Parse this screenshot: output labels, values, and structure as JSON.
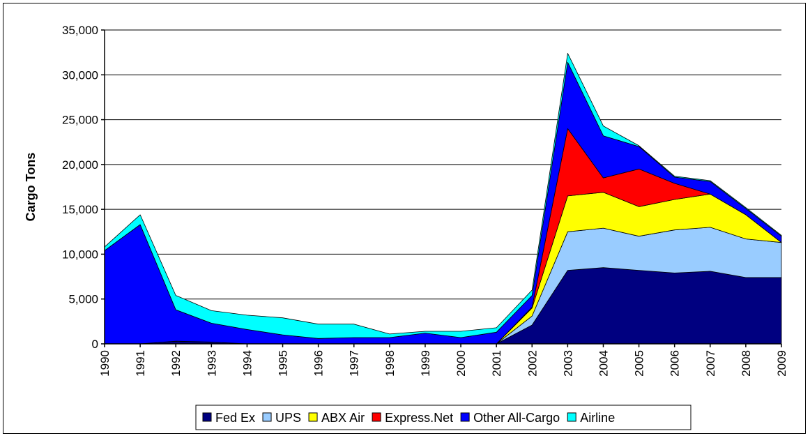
{
  "chart_data": {
    "type": "area",
    "stacked": true,
    "title": "",
    "xlabel": "",
    "ylabel": "Cargo Tons",
    "ylim": [
      0,
      35000
    ],
    "yticks": [
      0,
      5000,
      10000,
      15000,
      20000,
      25000,
      30000,
      35000
    ],
    "ytick_labels": [
      "0",
      "5,000",
      "10,000",
      "15,000",
      "20,000",
      "25,000",
      "30,000",
      "35,000"
    ],
    "grid": true,
    "legend_position": "bottom",
    "categories": [
      "1990",
      "1991",
      "1992",
      "1993",
      "1994",
      "1995",
      "1996",
      "1997",
      "1998",
      "1999",
      "2000",
      "2001",
      "2002",
      "2003",
      "2004",
      "2005",
      "2006",
      "2007",
      "2008",
      "2009"
    ],
    "series": [
      {
        "name": "Fed Ex",
        "color": "#000080",
        "values": [
          0,
          0,
          300,
          200,
          0,
          0,
          0,
          0,
          0,
          0,
          0,
          0,
          2100,
          8200,
          8500,
          8200,
          7900,
          8100,
          7400,
          7400
        ]
      },
      {
        "name": "UPS",
        "color": "#99ccff",
        "values": [
          0,
          0,
          0,
          0,
          0,
          0,
          0,
          0,
          0,
          0,
          0,
          0,
          1000,
          4300,
          4400,
          3800,
          4800,
          4900,
          4300,
          3900
        ]
      },
      {
        "name": "ABX Air",
        "color": "#ffff00",
        "values": [
          0,
          0,
          0,
          0,
          0,
          0,
          0,
          0,
          0,
          0,
          0,
          0,
          900,
          4000,
          4000,
          3300,
          3400,
          3700,
          2700,
          0
        ]
      },
      {
        "name": "Express.Net",
        "color": "#ff0000",
        "values": [
          0,
          0,
          0,
          0,
          0,
          0,
          0,
          0,
          0,
          0,
          0,
          0,
          100,
          7500,
          1600,
          4200,
          1800,
          0,
          0,
          0
        ]
      },
      {
        "name": "Other All-Cargo",
        "color": "#0000ff",
        "values": [
          10400,
          13300,
          3500,
          2100,
          1600,
          1000,
          600,
          700,
          700,
          1200,
          700,
          1300,
          1300,
          7400,
          4700,
          2500,
          700,
          1400,
          700,
          700
        ]
      },
      {
        "name": "Airline",
        "color": "#00ffff",
        "values": [
          400,
          1100,
          1600,
          1400,
          1600,
          1900,
          1600,
          1500,
          400,
          200,
          700,
          500,
          600,
          1000,
          1100,
          100,
          100,
          100,
          100,
          100
        ]
      }
    ]
  }
}
